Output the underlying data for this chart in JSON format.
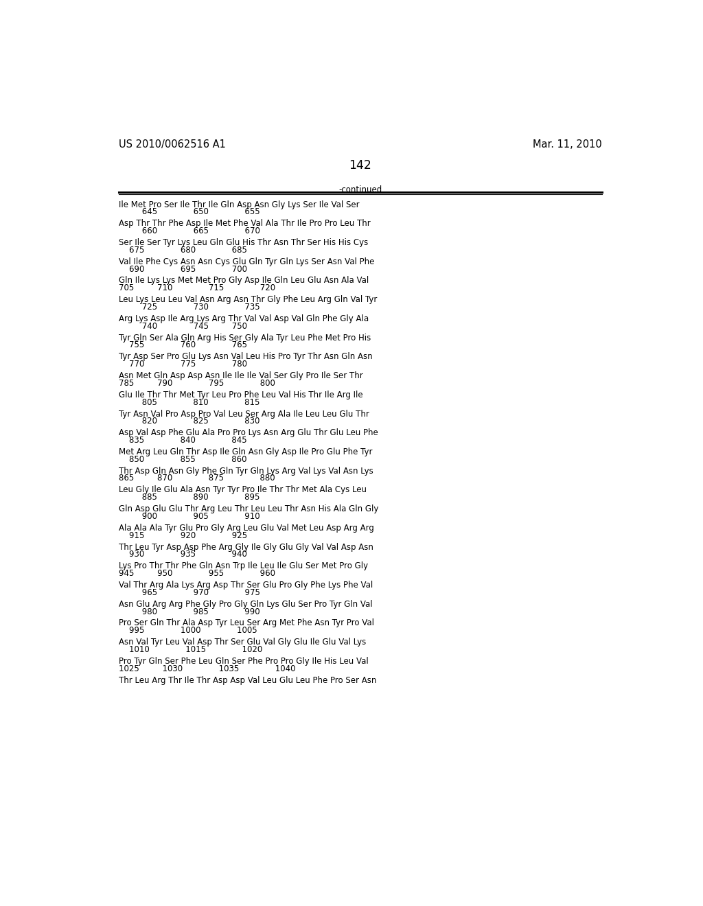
{
  "header_left": "US 2010/0062516 A1",
  "header_right": "Mar. 11, 2010",
  "page_number": "142",
  "continued_label": "-continued",
  "background_color": "#ffffff",
  "text_color": "#000000",
  "font_size": 8.5,
  "header_font_size": 10.5,
  "page_num_font_size": 12.5,
  "sequence_data": [
    [
      "Ile Met Pro Ser Ile Thr Ile Gln Asp Asn Gly Lys Ser Ile Val Ser",
      "         645              650              655"
    ],
    [
      "Asp Thr Thr Phe Asp Ile Met Phe Val Ala Thr Ile Pro Pro Leu Thr",
      "         660              665              670"
    ],
    [
      "Ser Ile Ser Tyr Lys Leu Gln Glu His Thr Asn Thr Ser His His Cys",
      "    675              680              685"
    ],
    [
      "Val Ile Phe Cys Asn Asn Cys Glu Gln Tyr Gln Lys Ser Asn Val Phe",
      "    690              695              700"
    ],
    [
      "Gln Ile Lys Lys Met Met Pro Gly Asp Ile Gln Leu Glu Asn Ala Val",
      "705         710              715              720"
    ],
    [
      "Leu Lys Leu Leu Val Asn Arg Asn Thr Gly Phe Leu Arg Gln Val Tyr",
      "         725              730              735"
    ],
    [
      "Arg Lys Asp Ile Arg Lys Arg Thr Val Val Asp Val Gln Phe Gly Ala",
      "         740              745         750"
    ],
    [
      "Tyr Gln Ser Ala Gln Arg His Ser Gly Ala Tyr Leu Phe Met Pro His",
      "    755              760              765"
    ],
    [
      "Tyr Asp Ser Pro Glu Lys Asn Val Leu His Pro Tyr Thr Asn Gln Asn",
      "    770              775              780"
    ],
    [
      "Asn Met Gln Asp Asp Asn Ile Ile Ile Val Ser Gly Pro Ile Ser Thr",
      "785         790              795              800"
    ],
    [
      "Glu Ile Thr Thr Met Tyr Leu Pro Phe Leu Val His Thr Ile Arg Ile",
      "         805              810              815"
    ],
    [
      "Tyr Asn Val Pro Asp Pro Val Leu Ser Arg Ala Ile Leu Leu Glu Thr",
      "         820              825              830"
    ],
    [
      "Asp Val Asp Phe Glu Ala Pro Pro Lys Asn Arg Glu Thr Glu Leu Phe",
      "    835              840              845"
    ],
    [
      "Met Arg Leu Gln Thr Asp Ile Gln Asn Gly Asp Ile Pro Glu Phe Tyr",
      "    850              855              860"
    ],
    [
      "Thr Asp Gln Asn Gly Phe Gln Tyr Gln Lys Arg Val Lys Val Asn Lys",
      "865         870              875              880"
    ],
    [
      "Leu Gly Ile Glu Ala Asn Tyr Tyr Pro Ile Thr Thr Met Ala Cys Leu",
      "         885              890              895"
    ],
    [
      "Gln Asp Glu Glu Thr Arg Leu Thr Leu Leu Thr Asn His Ala Gln Gly",
      "         900              905              910"
    ],
    [
      "Ala Ala Ala Tyr Glu Pro Gly Arg Leu Glu Val Met Leu Asp Arg Arg",
      "    915              920              925"
    ],
    [
      "Thr Leu Tyr Asp Asp Phe Arg Gly Ile Gly Glu Gly Val Val Asp Asn",
      "    930              935              940"
    ],
    [
      "Lys Pro Thr Thr Phe Gln Asn Trp Ile Leu Ile Glu Ser Met Pro Gly",
      "945         950              955              960"
    ],
    [
      "Val Thr Arg Ala Lys Arg Asp Thr Ser Glu Pro Gly Phe Lys Phe Val",
      "         965              970              975"
    ],
    [
      "Asn Glu Arg Arg Phe Gly Pro Gly Gln Lys Glu Ser Pro Tyr Gln Val",
      "         980              985              990"
    ],
    [
      "Pro Ser Gln Thr Ala Asp Tyr Leu Ser Arg Met Phe Asn Tyr Pro Val",
      "    995              1000              1005"
    ],
    [
      "Asn Val Tyr Leu Val Asp Thr Ser Glu Val Gly Glu Ile Glu Val Lys",
      "    1010              1015              1020"
    ],
    [
      "Pro Tyr Gln Ser Phe Leu Gln Ser Phe Pro Pro Gly Ile His Leu Val",
      "1025         1030              1035              1040"
    ],
    [
      "Thr Leu Arg Thr Ile Thr Asp Asp Val Leu Glu Leu Phe Pro Ser Asn",
      ""
    ]
  ]
}
